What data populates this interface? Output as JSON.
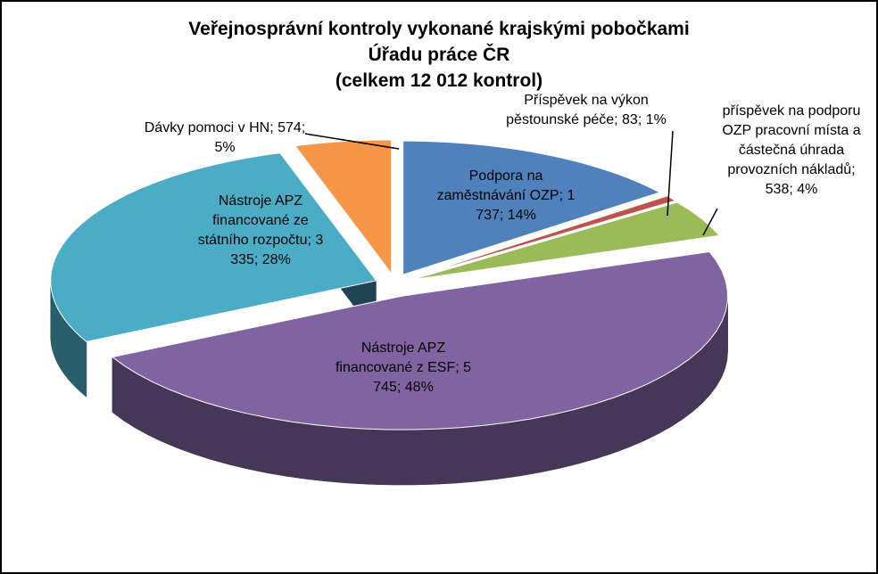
{
  "chart_data": {
    "type": "pie3d",
    "title": "Veřejnosprávní kontroly vykonané krajskými pobočkami\nÚřadu práce ČR\n(celkem 12 012 kontrol)",
    "categories": [
      "Podpora na zaměstnávání OZP",
      "Příspěvek na výkon pěstounské péče",
      "příspěvek na podporu OZP pracovní místa a částečná úhrada provozních nákladů",
      "Nástroje APZ financované z ESF",
      "Nástroje APZ financované ze státního rozpočtu",
      "Dávky pomoci v HN"
    ],
    "values": [
      1737,
      83,
      538,
      5745,
      3335,
      574
    ],
    "value_labels": [
      "1 737",
      "83",
      "538",
      "5 745",
      "3 335",
      "574"
    ],
    "percents": [
      14,
      1,
      4,
      48,
      28,
      5
    ],
    "percent_labels": [
      "14%",
      "1%",
      "4%",
      "48%",
      "28%",
      "5%"
    ],
    "label_separator": "; ",
    "colors": [
      "#4f81bd",
      "#c0504d",
      "#9bbb59",
      "#8064a2",
      "#4bacc6",
      "#f79646"
    ]
  }
}
